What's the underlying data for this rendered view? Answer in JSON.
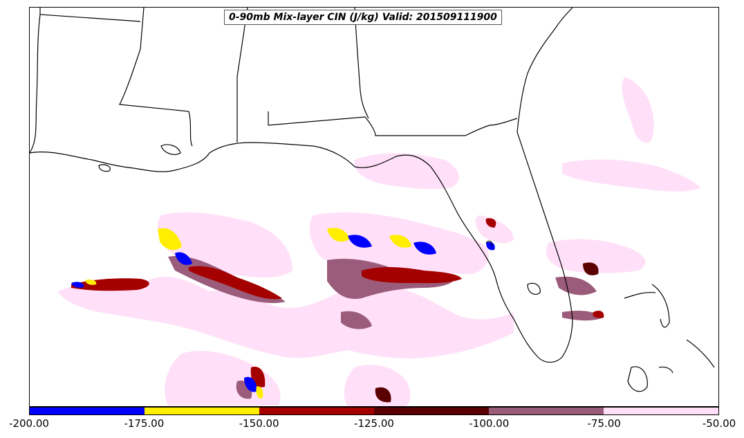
{
  "title": "0-90mb Mix-layer CIN (J/kg) Valid: 201509111900",
  "colorbar": {
    "tick_labels": [
      "-200.00",
      "-175.00",
      "-150.00",
      "-125.00",
      "-100.00",
      "-75.00",
      "-50.00"
    ],
    "bins": [
      {
        "range": [
          -200,
          -175
        ],
        "color": "#0000ff"
      },
      {
        "range": [
          -175,
          -150
        ],
        "color": "#ffee00"
      },
      {
        "range": [
          -150,
          -125
        ],
        "color": "#a50000"
      },
      {
        "range": [
          -125,
          -100
        ],
        "color": "#5a0000"
      },
      {
        "range": [
          -100,
          -75
        ],
        "color": "#9a5c7a"
      },
      {
        "range": [
          -75,
          -50
        ],
        "color": "#ffe0f8"
      }
    ]
  },
  "map": {
    "region": "Gulf of Mexico / Southeastern United States",
    "field": "Mix-layer CIN",
    "units": "J/kg"
  }
}
